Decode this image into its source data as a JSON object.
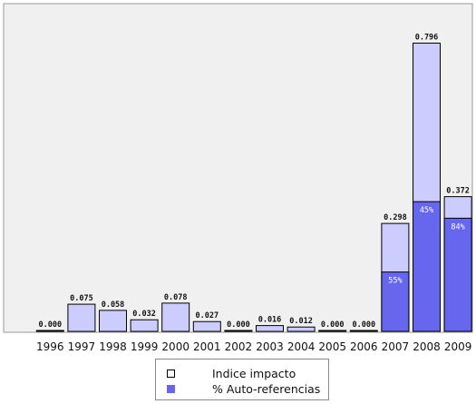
{
  "chart_data": {
    "type": "bar",
    "categories": [
      "1996",
      "1997",
      "1998",
      "1999",
      "2000",
      "2001",
      "2002",
      "2003",
      "2004",
      "2005",
      "2006",
      "2007",
      "2008",
      "2009"
    ],
    "series": [
      {
        "name": "Indice impacto",
        "values": [
          0.0,
          0.075,
          0.058,
          0.032,
          0.078,
          0.027,
          0.0,
          0.016,
          0.012,
          0.0,
          0.0,
          0.298,
          0.796,
          0.372
        ]
      },
      {
        "name": "% Auto-referencias",
        "values": [
          null,
          null,
          null,
          null,
          null,
          null,
          null,
          null,
          null,
          null,
          null,
          55,
          45,
          84
        ]
      }
    ],
    "value_labels": [
      "0.000",
      "0.075",
      "0.058",
      "0.032",
      "0.078",
      "0.027",
      "0.000",
      "0.016",
      "0.012",
      "0.000",
      "0.000",
      "0.298",
      "0.796",
      "0.372"
    ],
    "percent_labels": [
      "",
      "",
      "",
      "",
      "",
      "",
      "",
      "",
      "",
      "",
      "",
      "55%",
      "45%",
      "84%"
    ],
    "ylim": [
      0,
      0.9
    ],
    "grid": false,
    "legend_position": "bottom",
    "colors": {
      "plot_background": "#f0f0f0",
      "bar_fill": "#ccccff",
      "bar_border": "#000000",
      "self_ref_fill": "#6666ee",
      "legend_swatch_1": "#ffffff",
      "legend_swatch_2": "#6666ee"
    }
  },
  "legend": {
    "items": [
      {
        "label": "Indice impacto"
      },
      {
        "label": "% Auto-referencias"
      }
    ]
  }
}
